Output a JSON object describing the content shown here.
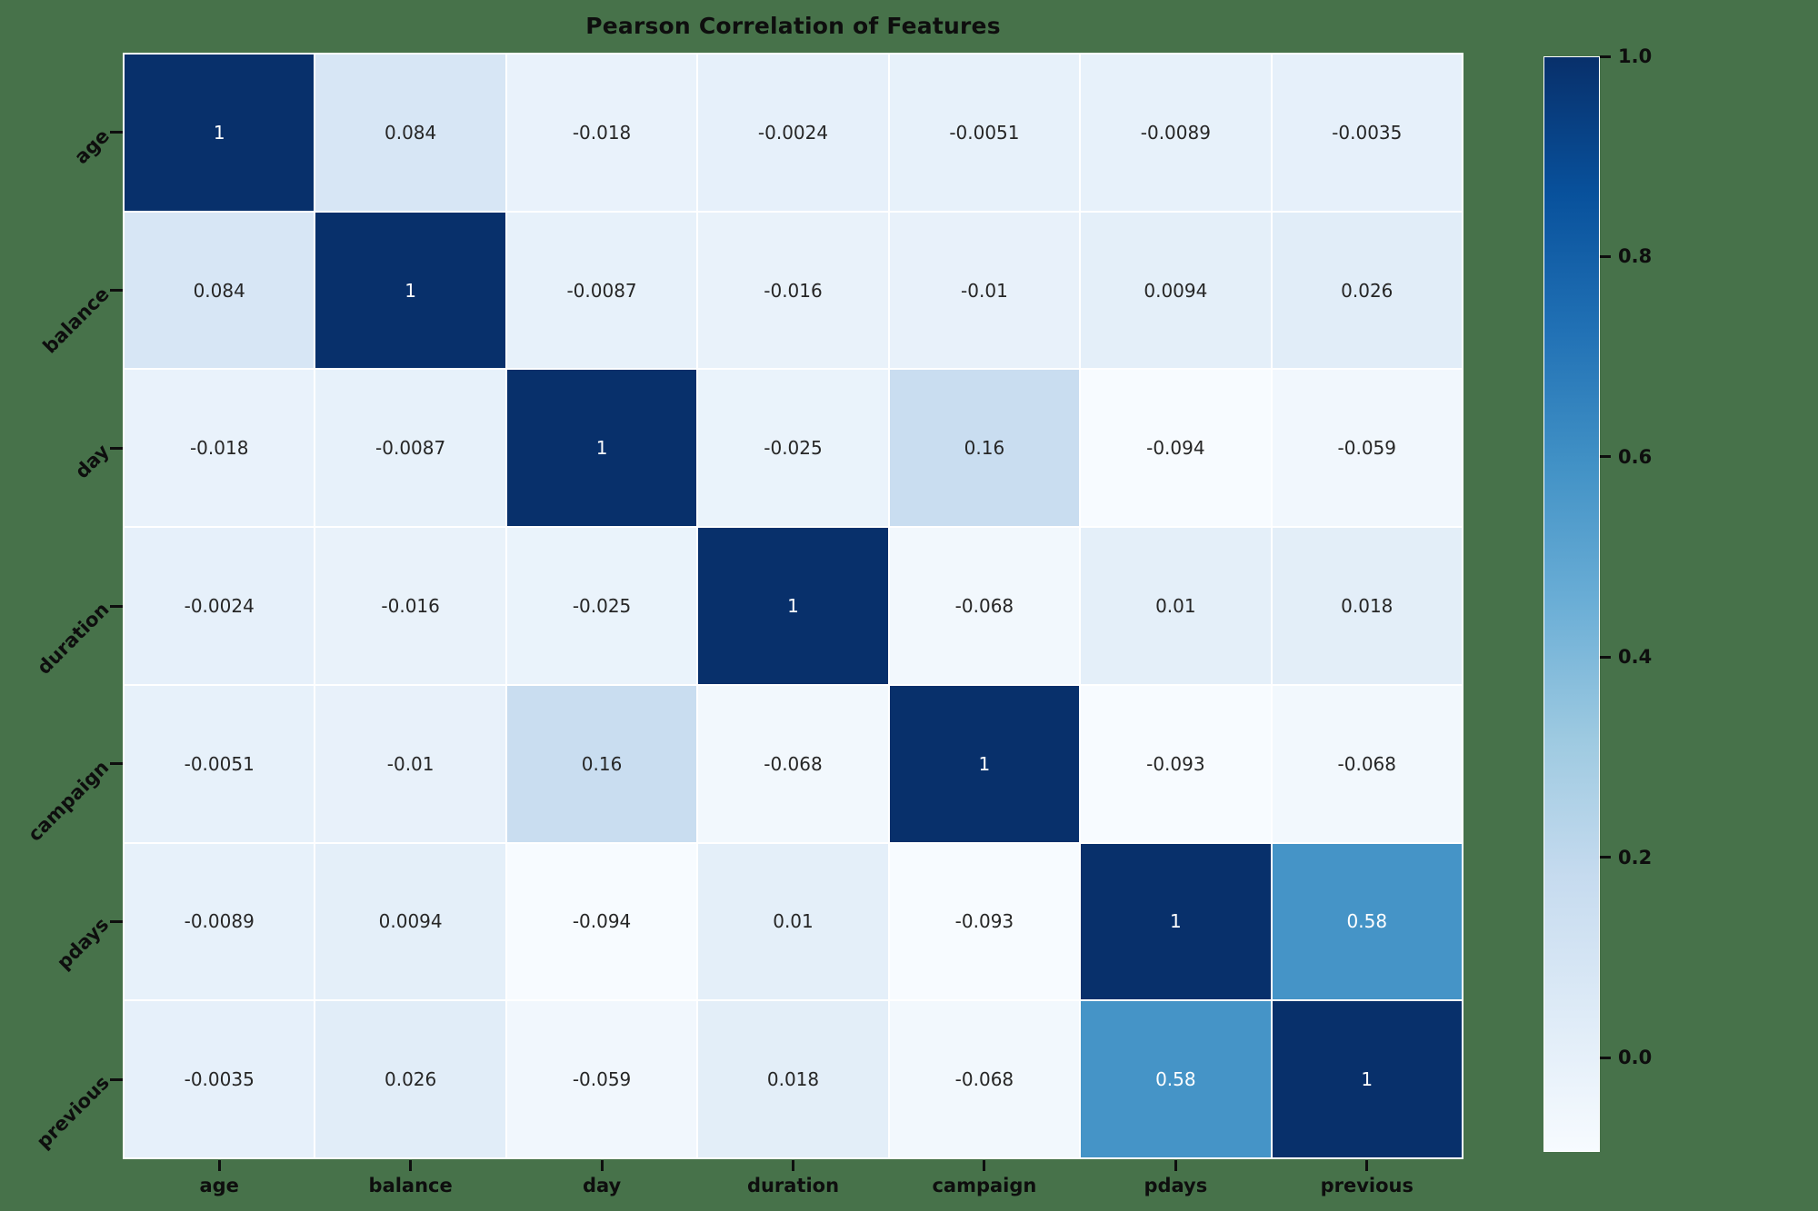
{
  "figure": {
    "title": "Pearson Correlation of Features",
    "colors": {
      "background": "#47724a",
      "tick_text": "#0e0e0e",
      "cell_text_dark": "#262626",
      "cell_text_light": "#ffffff",
      "cell_gap": "#ffffff",
      "cmap_max": "#08306b",
      "cmap_min": "#f7fbff"
    }
  },
  "chart_data": {
    "type": "heatmap",
    "title": "Pearson Correlation of Features",
    "colormap": "Blues",
    "categories": [
      "age",
      "balance",
      "day",
      "duration",
      "campaign",
      "pdays",
      "previous"
    ],
    "matrix": [
      [
        1,
        0.084,
        -0.018,
        -0.0024,
        -0.0051,
        -0.0089,
        -0.0035
      ],
      [
        0.084,
        1,
        -0.0087,
        -0.016,
        -0.01,
        0.0094,
        0.026
      ],
      [
        -0.018,
        -0.0087,
        1,
        -0.025,
        0.16,
        -0.094,
        -0.059
      ],
      [
        -0.0024,
        -0.016,
        -0.025,
        1,
        -0.068,
        0.01,
        0.018
      ],
      [
        -0.0051,
        -0.01,
        0.16,
        -0.068,
        1,
        -0.093,
        -0.068
      ],
      [
        -0.0089,
        0.0094,
        -0.094,
        0.01,
        -0.093,
        1,
        0.58
      ],
      [
        -0.0035,
        0.026,
        -0.059,
        0.018,
        -0.068,
        0.58,
        1
      ]
    ],
    "vmin": -0.094,
    "vmax": 1.0,
    "grid": false,
    "legend_position": "right-colorbar",
    "colorbar_ticks": [
      {
        "label": "1.0",
        "value": 1.0
      },
      {
        "label": "0.8",
        "value": 0.8
      },
      {
        "label": "0.6",
        "value": 0.6
      },
      {
        "label": "0.4",
        "value": 0.4
      },
      {
        "label": "0.2",
        "value": 0.2
      },
      {
        "label": "0.0",
        "value": 0.0
      }
    ]
  }
}
